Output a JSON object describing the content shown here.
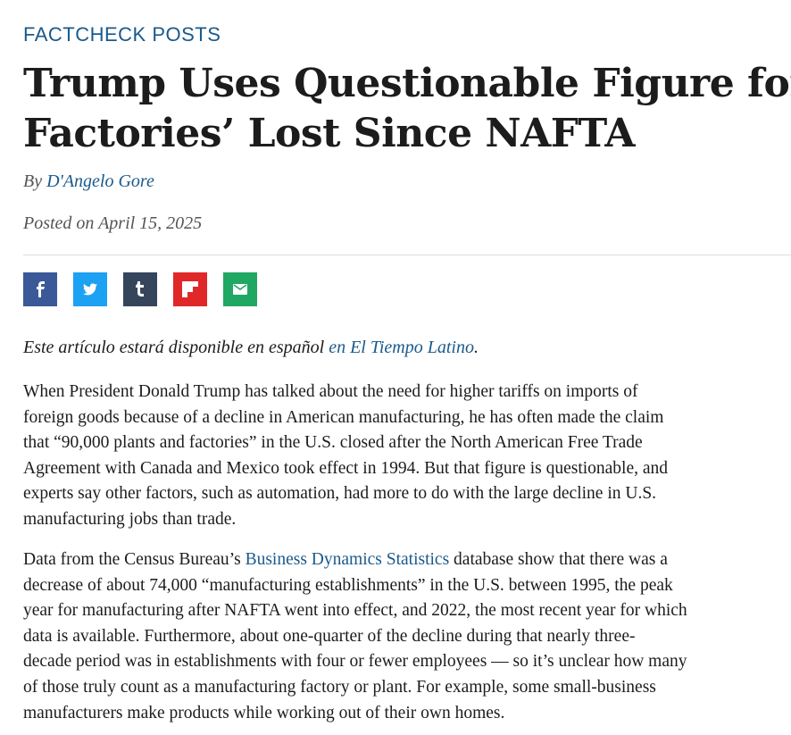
{
  "category": "FACTCHECK POSTS",
  "title_lines": [
    "Trump Uses Questionable Figure for U.S.",
    "Factories’ Lost Since NAFTA"
  ],
  "byline": {
    "prefix": "By ",
    "author": "D'Angelo Gore"
  },
  "posted": "Posted on April 15, 2025",
  "share": [
    {
      "name": "facebook",
      "color": "#3b5998",
      "icon": "facebook-icon"
    },
    {
      "name": "twitter",
      "color": "#1da1f2",
      "icon": "twitter-icon"
    },
    {
      "name": "tumblr",
      "color": "#35465c",
      "icon": "tumblr-icon"
    },
    {
      "name": "flipboard",
      "color": "#e12828",
      "icon": "flipboard-icon"
    },
    {
      "name": "email",
      "color": "#20a862",
      "icon": "email-icon"
    }
  ],
  "spanish_note": {
    "text": "Este artículo estará disponible en español ",
    "link": "en El Tiempo Latino",
    "end": "."
  },
  "paragraph1_lines": [
    "When President Donald Trump has talked about the need for higher tariffs on imports of",
    "foreign goods because of a decline in American manufacturing, he has often made the claim",
    "that “90,000 plants and factories” in the U.S. closed after the North American Free Trade",
    "Agreement with Canada and Mexico took effect in 1994. But that figure is questionable, and",
    "experts say other factors, such as automation, had more to do with the large decline in U.S.",
    "manufacturing jobs than trade."
  ],
  "paragraph2": {
    "first_prefix": "Data from the Census Bureau’s ",
    "first_link": "Business Dynamics Statistics",
    "first_suffix": " database show that there was a",
    "lines": [
      "decrease of about 74,000 “manufacturing establishments” in the U.S. between 1995, the peak",
      "year for manufacturing after NAFTA went into effect, and 2022, the most recent year for which",
      "data is available. Furthermore, about one-quarter of the decline during that nearly three-",
      "decade period was in establishments with four or fewer employees — so it’s unclear how many",
      "of those truly count as a manufacturing factory or plant. For example, some small-business",
      "manufacturers make products while working out of their own homes."
    ]
  }
}
